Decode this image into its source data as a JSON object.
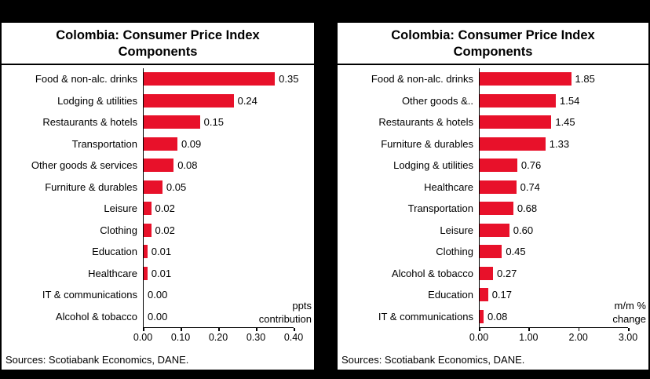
{
  "colors": {
    "background": "#000000",
    "panel": "#FFFFFF",
    "bar": "#E8112A",
    "text": "#000000"
  },
  "chart_data": [
    {
      "type": "bar",
      "orientation": "horizontal",
      "title": "Colombia: Consumer Price Index Components",
      "title_lines": [
        "Colombia: Consumer Price Index",
        "Components"
      ],
      "categories": [
        "Food & non-alc. drinks",
        "Lodging & utilities",
        "Restaurants & hotels",
        "Transportation",
        "Other goods & services",
        "Furniture & durables",
        "Leisure",
        "Clothing",
        "Education",
        "Healthcare",
        "IT & communications",
        "Alcohol & tobacco"
      ],
      "values": [
        0.35,
        0.24,
        0.15,
        0.09,
        0.08,
        0.05,
        0.02,
        0.02,
        0.01,
        0.01,
        0.0,
        0.0
      ],
      "value_labels": [
        "0.35",
        "0.24",
        "0.15",
        "0.09",
        "0.08",
        "0.05",
        "0.02",
        "0.02",
        "0.01",
        "0.01",
        "0.00",
        "0.00"
      ],
      "xlim": [
        0,
        0.4
      ],
      "tick_values": [
        0,
        0.1,
        0.2,
        0.3,
        0.4
      ],
      "tick_labels": [
        "0.00",
        "0.10",
        "0.20",
        "0.30",
        "0.40"
      ],
      "annotation": "ppts contribution",
      "annotation_lines": [
        "ppts",
        "contribution"
      ],
      "bar_color": "#E8112A",
      "grid": false,
      "legend": false,
      "source": "Sources: Scotiabank Economics, DANE."
    },
    {
      "type": "bar",
      "orientation": "horizontal",
      "title": "Colombia: Consumer Price Index Components",
      "title_lines": [
        "Colombia: Consumer Price Index",
        "Components"
      ],
      "categories": [
        "Food & non-alc. drinks",
        "Other goods &..",
        "Restaurants & hotels",
        "Furniture & durables",
        "Lodging & utilities",
        "Healthcare",
        "Transportation",
        "Leisure",
        "Clothing",
        "Alcohol & tobacco",
        "Education",
        "IT & communications"
      ],
      "values": [
        1.85,
        1.54,
        1.45,
        1.33,
        0.76,
        0.74,
        0.68,
        0.6,
        0.45,
        0.27,
        0.17,
        0.08
      ],
      "value_labels": [
        "1.85",
        "1.54",
        "1.45",
        "1.33",
        "0.76",
        "0.74",
        "0.68",
        "0.60",
        "0.45",
        "0.27",
        "0.17",
        "0.08"
      ],
      "xlim": [
        0,
        3
      ],
      "tick_values": [
        0,
        1,
        2,
        3
      ],
      "tick_labels": [
        "0.00",
        "1.00",
        "2.00",
        "3.00"
      ],
      "annotation": "m/m % change",
      "annotation_lines": [
        "m/m %",
        "change"
      ],
      "bar_color": "#E8112A",
      "grid": false,
      "legend": false,
      "source": "Sources: Scotiabank Economics, DANE."
    }
  ]
}
